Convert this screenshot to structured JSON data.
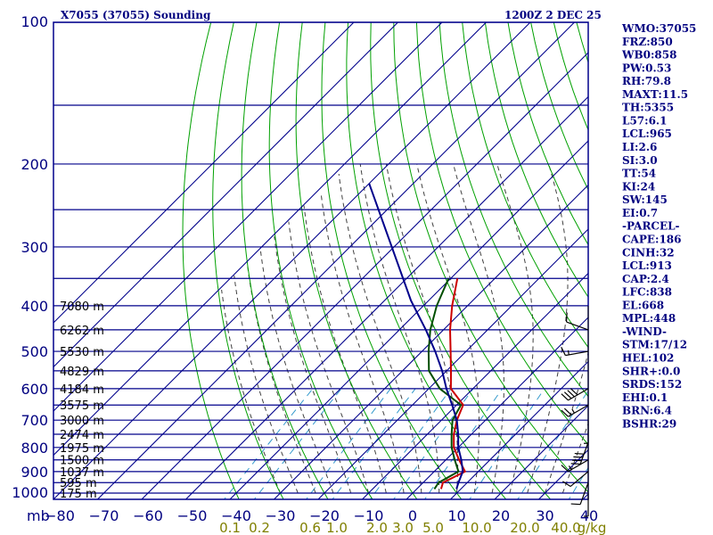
{
  "header": {
    "station": "X7055 (37055) Sounding",
    "time": "1200Z  2 DEC 25"
  },
  "indices": [
    "WMO:37055",
    "FRZ:850",
    "WB0:858",
    "PW:0.53",
    "RH:79.8",
    "MAXT:11.5",
    "TH:5355",
    "L57:6.1",
    "LCL:965",
    "LI:2.6",
    "SI:3.0",
    "TT:54",
    "KI:24",
    "SW:145",
    "EI:0.7",
    "-PARCEL-",
    "CAPE:186",
    "CINH:32",
    "LCL:913",
    "CAP:2.4",
    "LFC:838",
    "EL:668",
    "MPL:448",
    "-WIND-",
    "STM:17/12",
    "HEL:102",
    "SHR+:0.0",
    "SRDS:152",
    "EHI:0.1",
    "BRN:6.4",
    "BSHR:29"
  ],
  "colors": {
    "grid": "#00008b",
    "isotherm": "#00008b",
    "dry_adiabat": "#00a000",
    "moist_adiabat": "#404040",
    "mixing_ratio": "#3399cc",
    "temperature": "#cc0000",
    "dewpoint": "#004d00",
    "parcel": "#00008b",
    "wind": "#000000"
  },
  "chart_data": {
    "type": "line",
    "title": "X7055 (37055) Sounding",
    "x_unit_label": "mb",
    "y_scale": "log-pressure",
    "pressure_levels": [
      100,
      200,
      300,
      400,
      500,
      600,
      700,
      800,
      900,
      1000
    ],
    "p_range": [
      100,
      1050
    ],
    "temperature_ticks": [
      -80,
      -70,
      -60,
      -50,
      -40,
      -30,
      -20,
      -10,
      0,
      10,
      20,
      30,
      40
    ],
    "temperature_tick_labels": [
      "−80",
      "−70",
      "−60",
      "−50",
      "−40",
      "−30",
      "−20",
      "−10",
      "0",
      "10",
      "20",
      "30",
      "40"
    ],
    "mixing_ratio_labels": [
      "0.1",
      "0.2",
      "0.6",
      "1.0",
      "2.0",
      "3.0",
      "5.0",
      "10.0",
      "20.0",
      "40.0",
      "g/kg"
    ],
    "mixing_ratio_values": [
      0.1,
      0.2,
      0.6,
      1.0,
      2.0,
      3.0,
      5.0,
      10.0,
      20.0,
      40.0
    ],
    "heights": [
      {
        "label": "7080 m",
        "p": 400
      },
      {
        "label": "6262 m",
        "p": 450
      },
      {
        "label": "5530 m",
        "p": 500
      },
      {
        "label": "4829 m",
        "p": 550
      },
      {
        "label": "4184 m",
        "p": 600
      },
      {
        "label": "3575 m",
        "p": 650
      },
      {
        "label": "3000 m",
        "p": 700
      },
      {
        "label": "2474 m",
        "p": 750
      },
      {
        "label": "1975 m",
        "p": 800
      },
      {
        "label": "1500 m",
        "p": 850
      },
      {
        "label": "1037 m",
        "p": 900
      },
      {
        "label": "595 m",
        "p": 950
      },
      {
        "label": "175 m",
        "p": 1000
      }
    ],
    "series": [
      {
        "name": "Temperature",
        "points": [
          [
            350,
            -38.5
          ],
          [
            400,
            -33.5
          ],
          [
            450,
            -28.5
          ],
          [
            500,
            -23.5
          ],
          [
            550,
            -19
          ],
          [
            600,
            -15
          ],
          [
            650,
            -8.5
          ],
          [
            700,
            -6.5
          ],
          [
            750,
            -4
          ],
          [
            800,
            -1
          ],
          [
            850,
            3
          ],
          [
            900,
            7
          ],
          [
            950,
            4.5
          ],
          [
            980,
            5.5
          ]
        ]
      },
      {
        "name": "Dewpoint",
        "points": [
          [
            350,
            -40.5
          ],
          [
            400,
            -37
          ],
          [
            450,
            -33
          ],
          [
            500,
            -28.5
          ],
          [
            550,
            -24
          ],
          [
            600,
            -17.5
          ],
          [
            650,
            -9
          ],
          [
            700,
            -7.5
          ],
          [
            750,
            -4.5
          ],
          [
            800,
            -1.5
          ],
          [
            850,
            2
          ],
          [
            900,
            5.5
          ],
          [
            950,
            3.5
          ],
          [
            980,
            4
          ]
        ]
      },
      {
        "name": "Parcel",
        "points": [
          [
            390,
            -44
          ],
          [
            450,
            -34
          ],
          [
            500,
            -27
          ],
          [
            550,
            -21
          ],
          [
            600,
            -16
          ],
          [
            650,
            -11
          ],
          [
            700,
            -6.5
          ],
          [
            750,
            -3
          ],
          [
            800,
            0
          ],
          [
            850,
            3.5
          ],
          [
            900,
            6.5
          ],
          [
            950,
            8
          ],
          [
            980,
            9
          ]
        ]
      }
    ],
    "wind_barbs": [
      {
        "p": 450,
        "dir_deg": 290,
        "speed_kt": 10
      },
      {
        "p": 500,
        "dir_deg": 260,
        "speed_kt": 15
      },
      {
        "p": 600,
        "dir_deg": 240,
        "speed_kt": 40
      },
      {
        "p": 650,
        "dir_deg": 240,
        "speed_kt": 25
      },
      {
        "p": 700,
        "dir_deg": 180,
        "speed_kt": 5
      },
      {
        "p": 780,
        "dir_deg": 200,
        "speed_kt": 40
      },
      {
        "p": 850,
        "dir_deg": 240,
        "speed_kt": 15
      },
      {
        "p": 900,
        "dir_deg": 230,
        "speed_kt": 10
      },
      {
        "p": 950,
        "dir_deg": 200,
        "speed_kt": 10
      },
      {
        "p": 1000,
        "dir_deg": 180,
        "speed_kt": 5
      }
    ]
  }
}
